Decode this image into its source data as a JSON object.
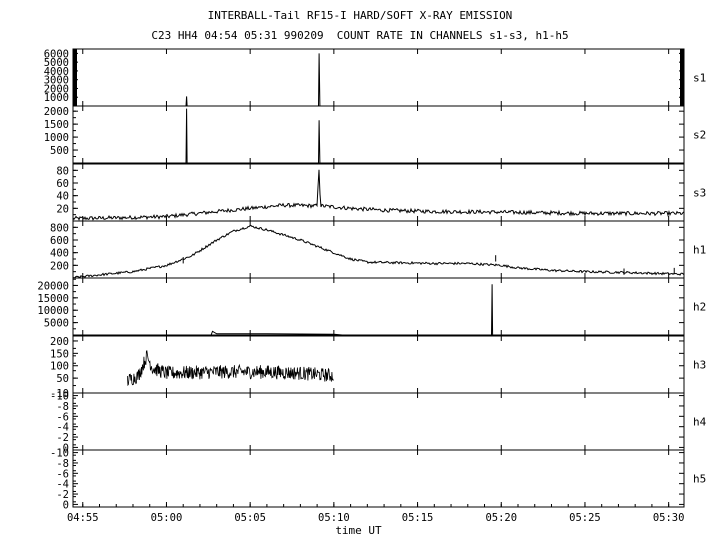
{
  "header": {
    "title": "INTERBALL-Tail RF15-I HARD/SOFT X-RAY EMISSION",
    "subtitle": "C23 HH4 04:54 05:31 990209  COUNT RATE IN CHANNELS s1-s3, h1-h5"
  },
  "chart_data": {
    "type": "line",
    "xlabel": "time UT",
    "x_range": [
      "04:54:25",
      "05:30:55"
    ],
    "x_ticks": [
      "04:55",
      "05:00",
      "05:05",
      "05:10",
      "05:15",
      "05:20",
      "05:25",
      "05:30"
    ],
    "grid": false,
    "panels": [
      {
        "channel": "s1",
        "ylim": [
          0,
          6500
        ],
        "yticks": [
          1000,
          2000,
          3000,
          4000,
          5000,
          6000
        ],
        "points": [
          [
            "04:54:25",
            0
          ],
          [
            "05:01:10",
            0
          ],
          [
            "05:01:12",
            1100
          ],
          [
            "05:01:14",
            0
          ],
          [
            "05:09:05",
            0
          ],
          [
            "05:09:07",
            6000
          ],
          [
            "05:09:10",
            0
          ],
          [
            "05:30:55",
            0
          ]
        ],
        "edge_bars": true
      },
      {
        "channel": "s2",
        "ylim": [
          0,
          2200
        ],
        "yticks": [
          500,
          1000,
          1500,
          2000
        ],
        "points": [
          [
            "04:54:25",
            0
          ],
          [
            "05:01:10",
            0
          ],
          [
            "05:01:12",
            2100
          ],
          [
            "05:01:14",
            0
          ],
          [
            "05:09:05",
            0
          ],
          [
            "05:09:07",
            1650
          ],
          [
            "05:09:10",
            0
          ],
          [
            "05:30:55",
            0
          ]
        ]
      },
      {
        "channel": "s3",
        "ylim": [
          0,
          90
        ],
        "yticks": [
          20,
          40,
          60,
          80
        ],
        "points": [
          [
            "04:54:25",
            4
          ],
          [
            "04:57:00",
            5
          ],
          [
            "05:00:00",
            7
          ],
          [
            "05:03:00",
            15
          ],
          [
            "05:05:00",
            20
          ],
          [
            "05:07:00",
            25
          ],
          [
            "05:09:00",
            24
          ],
          [
            "05:09:07",
            85
          ],
          [
            "05:09:12",
            24
          ],
          [
            "05:11:00",
            20
          ],
          [
            "05:13:00",
            17
          ],
          [
            "05:16:00",
            15
          ],
          [
            "05:20:00",
            14
          ],
          [
            "05:25:00",
            12
          ],
          [
            "05:30:55",
            12
          ]
        ],
        "noise": 3
      },
      {
        "channel": "h1",
        "ylim": [
          0,
          900
        ],
        "yticks": [
          200,
          400,
          600,
          800
        ],
        "points": [
          [
            "04:54:25",
            5
          ],
          [
            "04:56:00",
            50
          ],
          [
            "04:58:00",
            100
          ],
          [
            "05:00:00",
            200
          ],
          [
            "05:01:30",
            350
          ],
          [
            "05:03:00",
            600
          ],
          [
            "05:04:00",
            740
          ],
          [
            "05:05:00",
            820
          ],
          [
            "05:06:00",
            760
          ],
          [
            "05:07:00",
            680
          ],
          [
            "05:08:00",
            600
          ],
          [
            "05:09:00",
            500
          ],
          [
            "05:10:00",
            400
          ],
          [
            "05:11:00",
            300
          ],
          [
            "05:12:00",
            250
          ],
          [
            "05:14:00",
            240
          ],
          [
            "05:16:00",
            230
          ],
          [
            "05:18:00",
            230
          ],
          [
            "05:20:00",
            200
          ],
          [
            "05:21:00",
            160
          ],
          [
            "05:23:00",
            120
          ],
          [
            "05:25:00",
            100
          ],
          [
            "05:27:00",
            90
          ],
          [
            "05:30:55",
            60
          ]
        ],
        "noise": 18
      },
      {
        "channel": "h2",
        "ylim": [
          0,
          23000
        ],
        "yticks": [
          5000,
          10000,
          15000,
          20000
        ],
        "points": [
          [
            "04:54:25",
            0
          ],
          [
            "05:02:40",
            0
          ],
          [
            "05:02:45",
            1500
          ],
          [
            "05:03:00",
            500
          ],
          [
            "05:06:00",
            500
          ],
          [
            "05:10:00",
            300
          ],
          [
            "05:10:30",
            0
          ],
          [
            "05:19:25",
            0
          ],
          [
            "05:19:27",
            20500
          ],
          [
            "05:19:29",
            0
          ],
          [
            "05:30:55",
            0
          ]
        ]
      },
      {
        "channel": "h3",
        "ylim": [
          -10,
          220
        ],
        "yticks": [
          -10,
          50,
          100,
          150,
          200
        ],
        "points": [
          [
            "04:57:40",
            40
          ],
          [
            "04:58:20",
            60
          ],
          [
            "04:58:50",
            140
          ],
          [
            "04:59:10",
            90
          ],
          [
            "05:00:00",
            70
          ],
          [
            "05:03:00",
            75
          ],
          [
            "05:06:00",
            75
          ],
          [
            "05:08:00",
            70
          ],
          [
            "05:10:00",
            60
          ]
        ],
        "noise": 28
      },
      {
        "channel": "h4",
        "ylim": [
          -0.5,
          10.5
        ],
        "yticks": [
          -10,
          -8,
          -6,
          -4,
          -2,
          0
        ],
        "points": []
      },
      {
        "channel": "h5",
        "ylim": [
          -0.5,
          10.5
        ],
        "yticks": [
          -10,
          -8,
          -6,
          -4,
          -2,
          0
        ],
        "points": []
      }
    ]
  }
}
